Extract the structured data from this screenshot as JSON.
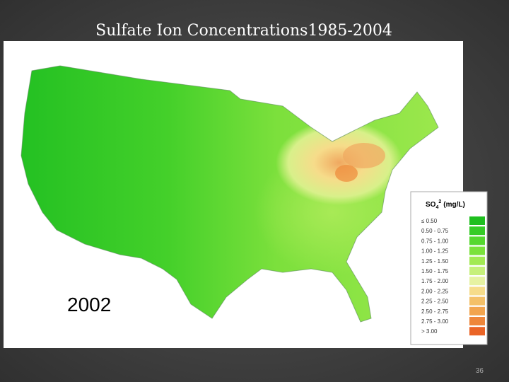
{
  "slide": {
    "title": "Sulfate Ion Concentrations1985-2004",
    "year": "2002",
    "page_number": "36"
  },
  "legend": {
    "title_main": "SO",
    "title_sub": "4",
    "title_sup": "2",
    "title_unit": "(mg/L)",
    "items": [
      {
        "label": "≤ 0.50",
        "color": "#1fbf1f"
      },
      {
        "label": "0.50 - 0.75",
        "color": "#36cc26"
      },
      {
        "label": "0.75 - 1.00",
        "color": "#55d82e"
      },
      {
        "label": "1.00 - 1.25",
        "color": "#7ae23a"
      },
      {
        "label": "1.25 - 1.50",
        "color": "#a2ea52"
      },
      {
        "label": "1.50 - 1.75",
        "color": "#c6f07a"
      },
      {
        "label": "1.75 - 2.00",
        "color": "#e6f2a2"
      },
      {
        "label": "2.00 - 2.25",
        "color": "#f6dc8a"
      },
      {
        "label": "2.25 - 2.50",
        "color": "#f4c068"
      },
      {
        "label": "2.50 - 2.75",
        "color": "#f2a44e"
      },
      {
        "label": "2.75 - 3.00",
        "color": "#ee863a"
      },
      {
        "label": "> 3.00",
        "color": "#ea6426"
      }
    ]
  }
}
